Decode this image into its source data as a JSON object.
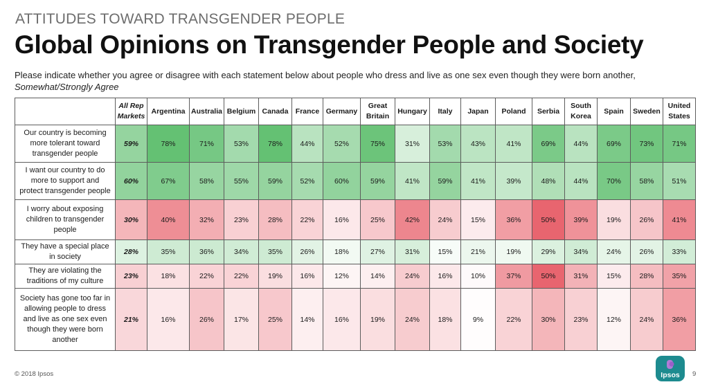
{
  "header": {
    "kicker": "ATTITUDES TOWARD TRANSGENDER PEOPLE",
    "title": "Global Opinions on Transgender People and Society",
    "subtitle": "Please indicate whether you agree or disagree with each statement below about people who dress and live as one sex even though they were born another,",
    "subtitle_emphasis": "Somewhat/Strongly Agree"
  },
  "colors": {
    "positive_scale": "#5fbf6f",
    "negative_scale": "#e65762",
    "neutral": "#ffffff",
    "grid_border": "#5c5c5c",
    "logo_teal": "#1d8b8f"
  },
  "chart_data": {
    "type": "table",
    "columns": [
      [
        "All Rep",
        "Markets"
      ],
      [
        "Argentina"
      ],
      [
        "Australia"
      ],
      [
        "Belgium"
      ],
      [
        "Canada"
      ],
      [
        "France"
      ],
      [
        "Germany"
      ],
      [
        "Great",
        "Britain"
      ],
      [
        "Hungary"
      ],
      [
        "Italy"
      ],
      [
        "Japan"
      ],
      [
        "Poland"
      ],
      [
        "Serbia"
      ],
      [
        "South",
        "Korea"
      ],
      [
        "Spain"
      ],
      [
        "Sweden"
      ],
      [
        "United",
        "States"
      ]
    ],
    "rows": [
      {
        "statement": [
          "Our country is becoming",
          "more tolerant toward",
          "transgender people"
        ],
        "scale": "positive",
        "values": [
          59,
          78,
          71,
          53,
          78,
          44,
          52,
          75,
          31,
          53,
          43,
          41,
          69,
          44,
          69,
          73,
          71
        ]
      },
      {
        "statement": [
          "I want our country to do",
          "more to support and",
          "protect transgender people"
        ],
        "scale": "positive",
        "values": [
          60,
          67,
          58,
          55,
          59,
          52,
          60,
          59,
          41,
          59,
          41,
          39,
          48,
          44,
          70,
          58,
          51
        ]
      },
      {
        "statement": [
          "I worry about exposing",
          "children to transgender",
          "people"
        ],
        "scale": "negative",
        "values": [
          30,
          40,
          32,
          23,
          28,
          22,
          16,
          25,
          42,
          24,
          15,
          36,
          50,
          39,
          19,
          26,
          41
        ]
      },
      {
        "statement": [
          "They have a special place",
          "in society"
        ],
        "scale": "positive",
        "values": [
          28,
          35,
          36,
          34,
          35,
          26,
          18,
          27,
          31,
          15,
          21,
          19,
          29,
          34,
          24,
          26,
          33
        ]
      },
      {
        "statement": [
          "They are violating the",
          "traditions of my culture"
        ],
        "scale": "negative",
        "values": [
          23,
          18,
          22,
          22,
          19,
          16,
          12,
          14,
          24,
          16,
          10,
          37,
          50,
          31,
          15,
          28,
          35
        ]
      },
      {
        "statement": [
          "Society has gone too far in",
          "allowing people to dress",
          "and live as one sex even",
          "though they were born",
          "another"
        ],
        "scale": "negative",
        "values": [
          21,
          16,
          26,
          17,
          25,
          14,
          16,
          19,
          24,
          18,
          9,
          22,
          30,
          23,
          12,
          24,
          36
        ]
      }
    ],
    "value_suffix": "%"
  },
  "footer": {
    "copyright": "© 2018 Ipsos",
    "logo_text": "Ipsos",
    "page_number": "9"
  }
}
